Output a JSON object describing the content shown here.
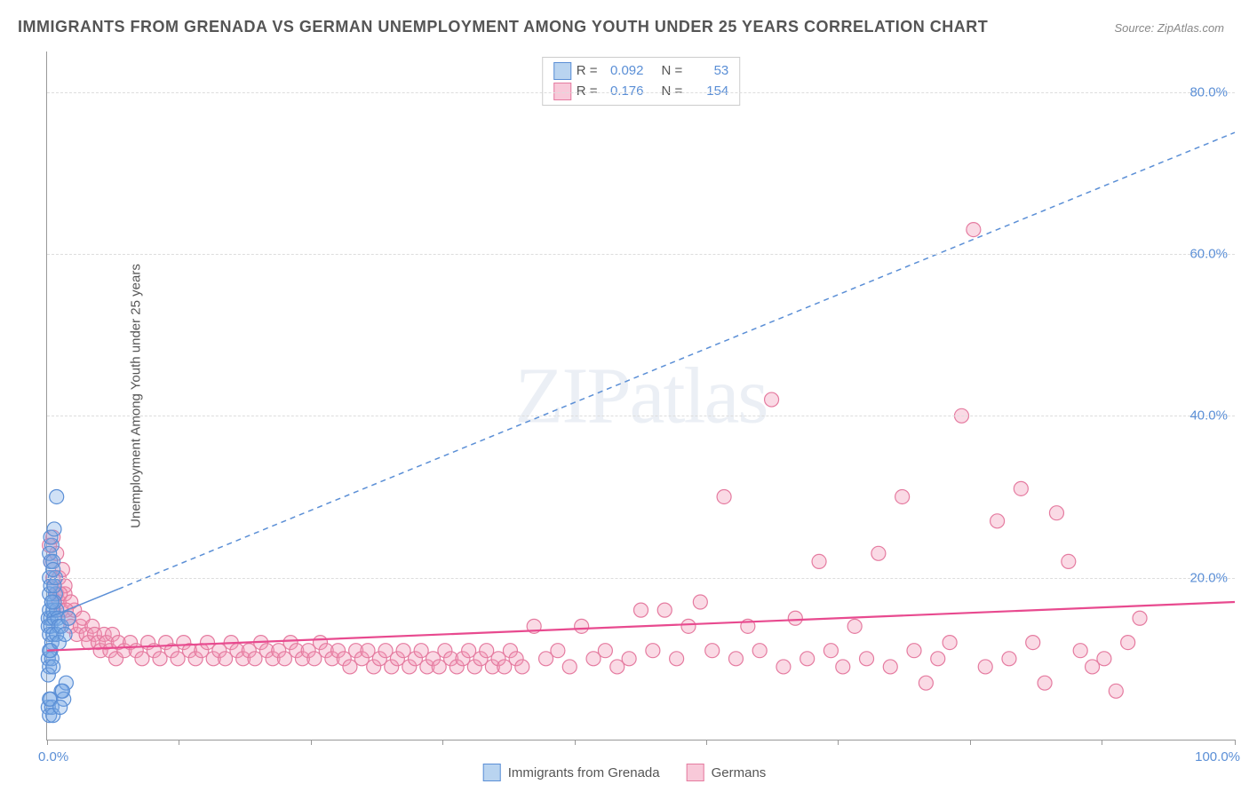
{
  "title": "IMMIGRANTS FROM GRENADA VS GERMAN UNEMPLOYMENT AMONG YOUTH UNDER 25 YEARS CORRELATION CHART",
  "source": "Source: ZipAtlas.com",
  "ylabel": "Unemployment Among Youth under 25 years",
  "watermark": "ZIPatlas",
  "chart": {
    "type": "scatter",
    "xlim": [
      0,
      100
    ],
    "ylim": [
      0,
      85
    ],
    "x_tick_label_min": "0.0%",
    "x_tick_label_max": "100.0%",
    "x_minor_ticks": [
      0,
      11.1,
      22.2,
      33.3,
      44.4,
      55.5,
      66.6,
      77.7,
      88.8,
      100
    ],
    "y_ticks": [
      20,
      40,
      60,
      80
    ],
    "y_tick_labels": [
      "20.0%",
      "40.0%",
      "60.0%",
      "80.0%"
    ],
    "background_color": "#ffffff",
    "grid_color": "#dddddd",
    "axis_color": "#999999",
    "tick_label_color": "#5b8fd6",
    "marker_radius": 8,
    "marker_stroke_width": 1.2,
    "series": [
      {
        "name": "Immigrants from Grenada",
        "fill": "rgba(120,170,230,0.35)",
        "stroke": "#5b8fd6",
        "legend_swatch_fill": "#b9d4f0",
        "legend_swatch_border": "#5b8fd6",
        "R_label": "R =",
        "R_value": "0.092",
        "N_label": "N =",
        "N_value": "53",
        "trend": {
          "x1": 0,
          "y1": 15,
          "x2": 100,
          "y2": 75,
          "solid_until_x": 6,
          "color": "#5b8fd6",
          "width": 1.5,
          "dash": "6,5"
        },
        "points": [
          [
            0.1,
            15
          ],
          [
            0.2,
            16
          ],
          [
            0.1,
            14
          ],
          [
            0.3,
            15
          ],
          [
            0.2,
            13
          ],
          [
            0.4,
            17
          ],
          [
            0.5,
            16
          ],
          [
            0.3,
            14
          ],
          [
            0.6,
            15
          ],
          [
            0.4,
            12
          ],
          [
            0.7,
            18
          ],
          [
            0.8,
            16
          ],
          [
            0.5,
            13
          ],
          [
            0.9,
            15
          ],
          [
            0.6,
            17
          ],
          [
            1.0,
            14
          ],
          [
            0.2,
            20
          ],
          [
            0.3,
            22
          ],
          [
            0.4,
            24
          ],
          [
            0.3,
            25
          ],
          [
            0.2,
            23
          ],
          [
            0.5,
            22
          ],
          [
            0.8,
            30
          ],
          [
            0.6,
            26
          ],
          [
            0.1,
            10
          ],
          [
            0.2,
            9
          ],
          [
            0.3,
            11
          ],
          [
            0.1,
            8
          ],
          [
            0.4,
            10
          ],
          [
            0.2,
            11
          ],
          [
            0.5,
            9
          ],
          [
            0.1,
            4
          ],
          [
            0.2,
            3
          ],
          [
            0.3,
            5
          ],
          [
            0.4,
            4
          ],
          [
            0.2,
            5
          ],
          [
            0.5,
            3
          ],
          [
            0.2,
            18
          ],
          [
            0.3,
            19
          ],
          [
            0.4,
            17
          ],
          [
            0.6,
            19
          ],
          [
            0.7,
            20
          ],
          [
            0.5,
            21
          ],
          [
            1.2,
            6
          ],
          [
            1.4,
            5
          ],
          [
            1.6,
            7
          ],
          [
            1.1,
            4
          ],
          [
            1.3,
            6
          ],
          [
            0.8,
            13
          ],
          [
            1.0,
            12
          ],
          [
            1.2,
            14
          ],
          [
            1.5,
            13
          ],
          [
            1.8,
            15
          ]
        ]
      },
      {
        "name": "Germans",
        "fill": "rgba(240,150,180,0.35)",
        "stroke": "#e57ba0",
        "legend_swatch_fill": "#f8c9d9",
        "legend_swatch_border": "#e57ba0",
        "R_label": "R =",
        "R_value": "0.176",
        "N_label": "N =",
        "N_value": "154",
        "trend": {
          "x1": 0,
          "y1": 11,
          "x2": 100,
          "y2": 17,
          "solid_until_x": 100,
          "color": "#e84a8f",
          "width": 2.2,
          "dash": null
        },
        "points": [
          [
            0.3,
            22
          ],
          [
            0.5,
            20
          ],
          [
            0.8,
            18
          ],
          [
            1.0,
            17
          ],
          [
            1.2,
            16
          ],
          [
            1.5,
            18
          ],
          [
            1.8,
            15
          ],
          [
            2.0,
            14
          ],
          [
            2.3,
            16
          ],
          [
            2.5,
            13
          ],
          [
            2.8,
            14
          ],
          [
            3.0,
            15
          ],
          [
            3.3,
            13
          ],
          [
            3.5,
            12
          ],
          [
            3.8,
            14
          ],
          [
            4.0,
            13
          ],
          [
            4.3,
            12
          ],
          [
            4.5,
            11
          ],
          [
            4.8,
            13
          ],
          [
            5.0,
            12
          ],
          [
            5.3,
            11
          ],
          [
            5.5,
            13
          ],
          [
            5.8,
            10
          ],
          [
            6.0,
            12
          ],
          [
            6.5,
            11
          ],
          [
            7.0,
            12
          ],
          [
            7.5,
            11
          ],
          [
            8.0,
            10
          ],
          [
            8.5,
            12
          ],
          [
            9.0,
            11
          ],
          [
            9.5,
            10
          ],
          [
            10,
            12
          ],
          [
            10.5,
            11
          ],
          [
            11,
            10
          ],
          [
            11.5,
            12
          ],
          [
            12,
            11
          ],
          [
            12.5,
            10
          ],
          [
            13,
            11
          ],
          [
            13.5,
            12
          ],
          [
            14,
            10
          ],
          [
            14.5,
            11
          ],
          [
            15,
            10
          ],
          [
            15.5,
            12
          ],
          [
            16,
            11
          ],
          [
            16.5,
            10
          ],
          [
            17,
            11
          ],
          [
            17.5,
            10
          ],
          [
            18,
            12
          ],
          [
            18.5,
            11
          ],
          [
            19,
            10
          ],
          [
            19.5,
            11
          ],
          [
            20,
            10
          ],
          [
            20.5,
            12
          ],
          [
            21,
            11
          ],
          [
            21.5,
            10
          ],
          [
            22,
            11
          ],
          [
            22.5,
            10
          ],
          [
            23,
            12
          ],
          [
            23.5,
            11
          ],
          [
            24,
            10
          ],
          [
            24.5,
            11
          ],
          [
            25,
            10
          ],
          [
            25.5,
            9
          ],
          [
            26,
            11
          ],
          [
            26.5,
            10
          ],
          [
            27,
            11
          ],
          [
            27.5,
            9
          ],
          [
            28,
            10
          ],
          [
            28.5,
            11
          ],
          [
            29,
            9
          ],
          [
            29.5,
            10
          ],
          [
            30,
            11
          ],
          [
            30.5,
            9
          ],
          [
            31,
            10
          ],
          [
            31.5,
            11
          ],
          [
            32,
            9
          ],
          [
            32.5,
            10
          ],
          [
            33,
            9
          ],
          [
            33.5,
            11
          ],
          [
            34,
            10
          ],
          [
            34.5,
            9
          ],
          [
            35,
            10
          ],
          [
            35.5,
            11
          ],
          [
            36,
            9
          ],
          [
            36.5,
            10
          ],
          [
            37,
            11
          ],
          [
            37.5,
            9
          ],
          [
            38,
            10
          ],
          [
            38.5,
            9
          ],
          [
            39,
            11
          ],
          [
            39.5,
            10
          ],
          [
            40,
            9
          ],
          [
            41,
            14
          ],
          [
            42,
            10
          ],
          [
            43,
            11
          ],
          [
            44,
            9
          ],
          [
            45,
            14
          ],
          [
            46,
            10
          ],
          [
            47,
            11
          ],
          [
            48,
            9
          ],
          [
            49,
            10
          ],
          [
            50,
            16
          ],
          [
            51,
            11
          ],
          [
            52,
            16
          ],
          [
            53,
            10
          ],
          [
            54,
            14
          ],
          [
            55,
            17
          ],
          [
            56,
            11
          ],
          [
            57,
            30
          ],
          [
            58,
            10
          ],
          [
            59,
            14
          ],
          [
            60,
            11
          ],
          [
            61,
            42
          ],
          [
            62,
            9
          ],
          [
            63,
            15
          ],
          [
            64,
            10
          ],
          [
            65,
            22
          ],
          [
            66,
            11
          ],
          [
            67,
            9
          ],
          [
            68,
            14
          ],
          [
            69,
            10
          ],
          [
            70,
            23
          ],
          [
            71,
            9
          ],
          [
            72,
            30
          ],
          [
            73,
            11
          ],
          [
            74,
            7
          ],
          [
            75,
            10
          ],
          [
            76,
            12
          ],
          [
            77,
            40
          ],
          [
            78,
            63
          ],
          [
            79,
            9
          ],
          [
            80,
            27
          ],
          [
            81,
            10
          ],
          [
            82,
            31
          ],
          [
            83,
            12
          ],
          [
            84,
            7
          ],
          [
            85,
            28
          ],
          [
            86,
            22
          ],
          [
            87,
            11
          ],
          [
            88,
            9
          ],
          [
            89,
            10
          ],
          [
            90,
            6
          ],
          [
            91,
            12
          ],
          [
            92,
            15
          ],
          [
            0.5,
            25
          ],
          [
            1.0,
            20
          ],
          [
            1.5,
            19
          ],
          [
            2.0,
            17
          ],
          [
            0.8,
            23
          ],
          [
            1.3,
            21
          ],
          [
            0.2,
            24
          ],
          [
            0.6,
            19
          ],
          [
            1.1,
            18
          ],
          [
            1.6,
            16
          ]
        ]
      }
    ]
  }
}
